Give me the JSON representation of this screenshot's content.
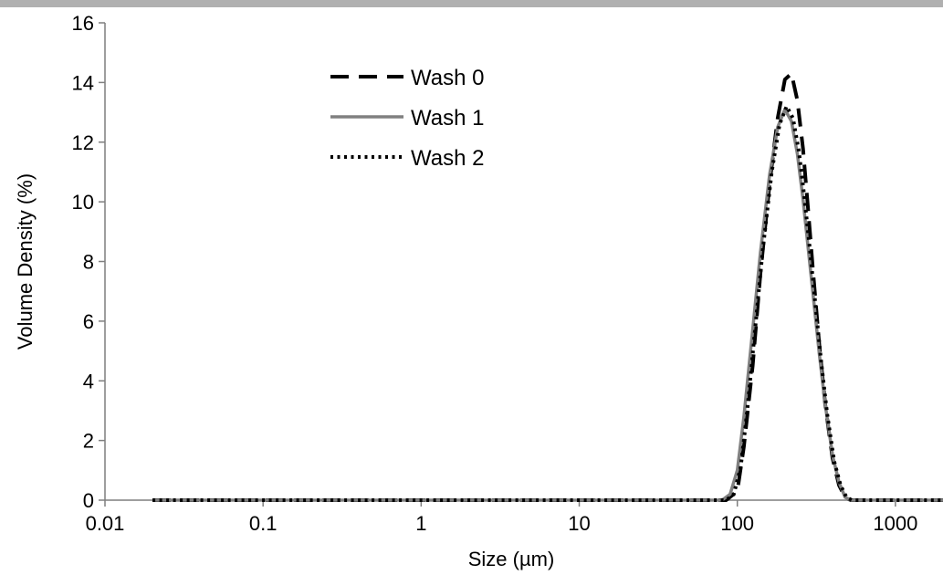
{
  "chart_data": {
    "type": "line",
    "xlabel": "Size (µm)",
    "ylabel": "Volume Density (%)",
    "x_scale": "log",
    "xlim": [
      0.01,
      2000
    ],
    "ylim": [
      0,
      16
    ],
    "x_ticks": [
      {
        "value": 0.01,
        "label": "0.01"
      },
      {
        "value": 0.1,
        "label": "0.1"
      },
      {
        "value": 1,
        "label": "1"
      },
      {
        "value": 10,
        "label": "10"
      },
      {
        "value": 100,
        "label": "100"
      },
      {
        "value": 1000,
        "label": "1000"
      }
    ],
    "y_ticks": [
      {
        "value": 0,
        "label": "0"
      },
      {
        "value": 2,
        "label": "2"
      },
      {
        "value": 4,
        "label": "4"
      },
      {
        "value": 6,
        "label": "6"
      },
      {
        "value": 8,
        "label": "8"
      },
      {
        "value": 10,
        "label": "10"
      },
      {
        "value": 12,
        "label": "12"
      },
      {
        "value": 14,
        "label": "14"
      },
      {
        "value": 16,
        "label": "16"
      }
    ],
    "grid": false,
    "legend_position": "top-center",
    "series": [
      {
        "name": "Wash 0",
        "color": "#000000",
        "style": "dashed",
        "x": [
          0.02,
          0.1,
          1,
          10,
          50,
          85,
          100,
          110,
          125,
          140,
          160,
          180,
          200,
          220,
          240,
          260,
          280,
          300,
          330,
          360,
          400,
          440,
          480,
          520,
          560,
          600,
          1000,
          2000
        ],
        "y": [
          0,
          0,
          0,
          0,
          0,
          0,
          0.3,
          1.8,
          4.5,
          7.6,
          10.6,
          12.8,
          14.1,
          14.3,
          13.4,
          11.8,
          9.8,
          7.8,
          5.2,
          3.2,
          1.4,
          0.5,
          0.1,
          0,
          0,
          0,
          0,
          0
        ]
      },
      {
        "name": "Wash 1",
        "color": "#808080",
        "style": "solid",
        "x": [
          0.02,
          0.1,
          1,
          10,
          50,
          80,
          90,
          100,
          110,
          125,
          140,
          160,
          180,
          200,
          220,
          240,
          260,
          280,
          300,
          330,
          360,
          400,
          440,
          480,
          520,
          560,
          1000,
          2000
        ],
        "y": [
          0,
          0,
          0,
          0,
          0,
          0,
          0.2,
          1.0,
          2.8,
          5.7,
          8.3,
          10.9,
          12.5,
          13.1,
          12.7,
          11.6,
          10.1,
          8.5,
          7.0,
          4.9,
          3.2,
          1.5,
          0.6,
          0.1,
          0,
          0,
          0,
          0
        ]
      },
      {
        "name": "Wash 2",
        "color": "#000000",
        "style": "dotted",
        "x": [
          0.02,
          0.1,
          1,
          10,
          50,
          85,
          95,
          105,
          115,
          130,
          145,
          165,
          185,
          205,
          225,
          245,
          265,
          285,
          310,
          340,
          370,
          410,
          450,
          490,
          530,
          570,
          1000,
          2000
        ],
        "y": [
          0,
          0,
          0,
          0,
          0,
          0,
          0.2,
          1.1,
          2.9,
          5.8,
          8.4,
          11.0,
          12.6,
          13.2,
          12.8,
          11.7,
          10.2,
          8.6,
          6.7,
          4.6,
          2.9,
          1.3,
          0.5,
          0.1,
          0,
          0,
          0,
          0
        ]
      }
    ]
  }
}
